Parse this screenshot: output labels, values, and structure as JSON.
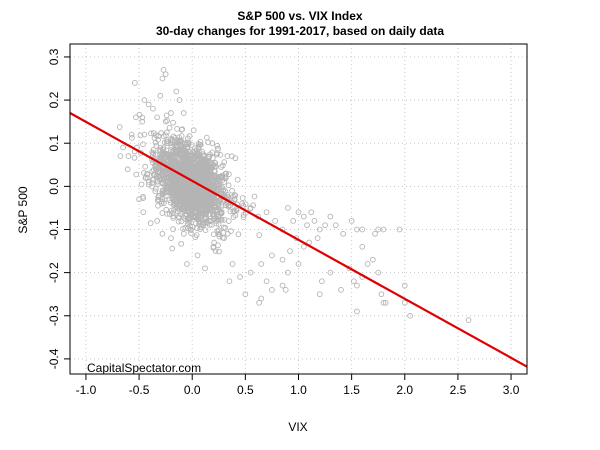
{
  "chart_data": {
    "type": "scatter",
    "title": "S&P 500 vs. VIX Index",
    "subtitle": "30-day changes for 1991-2017, based on daily data",
    "xlabel": "VIX",
    "ylabel": "S&P 500",
    "xlim": [
      -1.15,
      3.15
    ],
    "ylim": [
      -0.435,
      0.33
    ],
    "x_ticks": [
      -1.0,
      -0.5,
      0.0,
      0.5,
      1.0,
      1.5,
      2.0,
      2.5,
      3.0
    ],
    "x_tick_labels": [
      "-1.0",
      "-0.5",
      "0.0",
      "0.5",
      "1.0",
      "1.5",
      "2.0",
      "2.5",
      "3.0"
    ],
    "y_ticks": [
      -0.4,
      -0.3,
      -0.2,
      -0.1,
      0.0,
      0.1,
      0.2,
      0.3
    ],
    "y_tick_labels": [
      "-0.4",
      "-0.3",
      "-0.2",
      "-0.1",
      "0.0",
      "0.1",
      "0.2",
      "0.3"
    ],
    "grid": true,
    "watermark": "CapitalSpectator.com",
    "colors": {
      "points": "#b4b4b4",
      "fit_line": "#e00000",
      "grid": "#c8c8c8"
    },
    "series": [
      {
        "kind": "points",
        "points": [
          [
            -0.54,
            0.24
          ],
          [
            -0.27,
            0.27
          ],
          [
            -0.25,
            0.26
          ],
          [
            -0.28,
            0.25
          ],
          [
            -0.15,
            0.22
          ],
          [
            -0.45,
            0.2
          ],
          [
            -0.41,
            0.19
          ],
          [
            -0.3,
            0.21
          ],
          [
            -0.12,
            0.2
          ],
          [
            -0.37,
            0.18
          ],
          [
            -0.2,
            0.17
          ],
          [
            -0.08,
            0.17
          ],
          [
            -0.53,
            0.16
          ],
          [
            -0.47,
            0.15
          ],
          [
            -0.33,
            0.16
          ],
          [
            -0.25,
            0.15
          ],
          [
            -0.45,
            0.12
          ],
          [
            -0.6,
            0.07
          ],
          [
            -0.57,
            0.12
          ],
          [
            -0.65,
            0.09
          ],
          [
            -0.52,
            0.09
          ],
          [
            -0.5,
            -0.03
          ],
          [
            -0.46,
            -0.06
          ],
          [
            -0.42,
            0.02
          ],
          [
            0.13,
            0.06
          ],
          [
            0.2,
            0.05
          ],
          [
            0.18,
            0.02
          ],
          [
            0.3,
            0.01
          ],
          [
            0.33,
            -0.03
          ],
          [
            0.4,
            -0.02
          ],
          [
            0.47,
            -0.04
          ],
          [
            0.55,
            -0.05
          ],
          [
            0.62,
            -0.07
          ],
          [
            0.3,
            -0.12
          ],
          [
            0.2,
            -0.14
          ],
          [
            0.05,
            -0.16
          ],
          [
            -0.05,
            -0.18
          ],
          [
            0.12,
            -0.19
          ],
          [
            0.22,
            -0.15
          ],
          [
            -0.2,
            -0.12
          ],
          [
            -0.28,
            -0.11
          ],
          [
            -0.33,
            -0.08
          ],
          [
            0.7,
            -0.06
          ],
          [
            0.78,
            -0.08
          ],
          [
            0.85,
            -0.1
          ],
          [
            0.9,
            -0.05
          ],
          [
            0.95,
            -0.08
          ],
          [
            1.0,
            -0.06
          ],
          [
            1.05,
            -0.07
          ],
          [
            1.08,
            -0.09
          ],
          [
            1.12,
            -0.06
          ],
          [
            1.15,
            -0.08
          ],
          [
            1.2,
            -0.1
          ],
          [
            1.25,
            -0.09
          ],
          [
            1.3,
            -0.07
          ],
          [
            1.35,
            -0.09
          ],
          [
            1.42,
            -0.11
          ],
          [
            1.5,
            -0.08
          ],
          [
            1.55,
            -0.1
          ],
          [
            1.6,
            -0.1
          ],
          [
            1.72,
            -0.11
          ],
          [
            1.75,
            -0.1
          ],
          [
            1.8,
            -0.1
          ],
          [
            1.95,
            -0.1
          ],
          [
            1.6,
            -0.14
          ],
          [
            1.1,
            -0.13
          ],
          [
            1.18,
            -0.12
          ],
          [
            1.05,
            -0.14
          ],
          [
            0.92,
            -0.15
          ],
          [
            0.85,
            -0.17
          ],
          [
            0.75,
            -0.16
          ],
          [
            0.65,
            -0.18
          ],
          [
            0.55,
            -0.2
          ],
          [
            0.45,
            -0.21
          ],
          [
            0.38,
            -0.18
          ],
          [
            0.5,
            -0.25
          ],
          [
            0.35,
            -0.22
          ],
          [
            0.7,
            -0.22
          ],
          [
            0.9,
            -0.2
          ],
          [
            1.0,
            -0.18
          ],
          [
            1.22,
            -0.22
          ],
          [
            1.3,
            -0.2
          ],
          [
            1.48,
            -0.19
          ],
          [
            1.52,
            -0.22
          ],
          [
            1.55,
            -0.23
          ],
          [
            1.6,
            -0.21
          ],
          [
            1.65,
            -0.18
          ],
          [
            1.7,
            -0.17
          ],
          [
            1.75,
            -0.2
          ],
          [
            1.78,
            -0.25
          ],
          [
            1.8,
            -0.27
          ],
          [
            1.82,
            -0.27
          ],
          [
            1.55,
            -0.29
          ],
          [
            0.85,
            -0.23
          ],
          [
            0.88,
            -0.24
          ],
          [
            0.75,
            -0.24
          ],
          [
            0.65,
            -0.26
          ],
          [
            0.63,
            -0.27
          ],
          [
            2.0,
            -0.27
          ],
          [
            2.05,
            -0.3
          ],
          [
            2.6,
            -0.31
          ],
          [
            2.0,
            -0.23
          ],
          [
            1.2,
            -0.25
          ],
          [
            1.4,
            -0.24
          ],
          [
            0.98,
            -0.12
          ]
        ]
      },
      {
        "kind": "regression_line",
        "x": [
          -1.15,
          3.15
        ],
        "y": [
          0.17,
          -0.418
        ]
      }
    ]
  }
}
